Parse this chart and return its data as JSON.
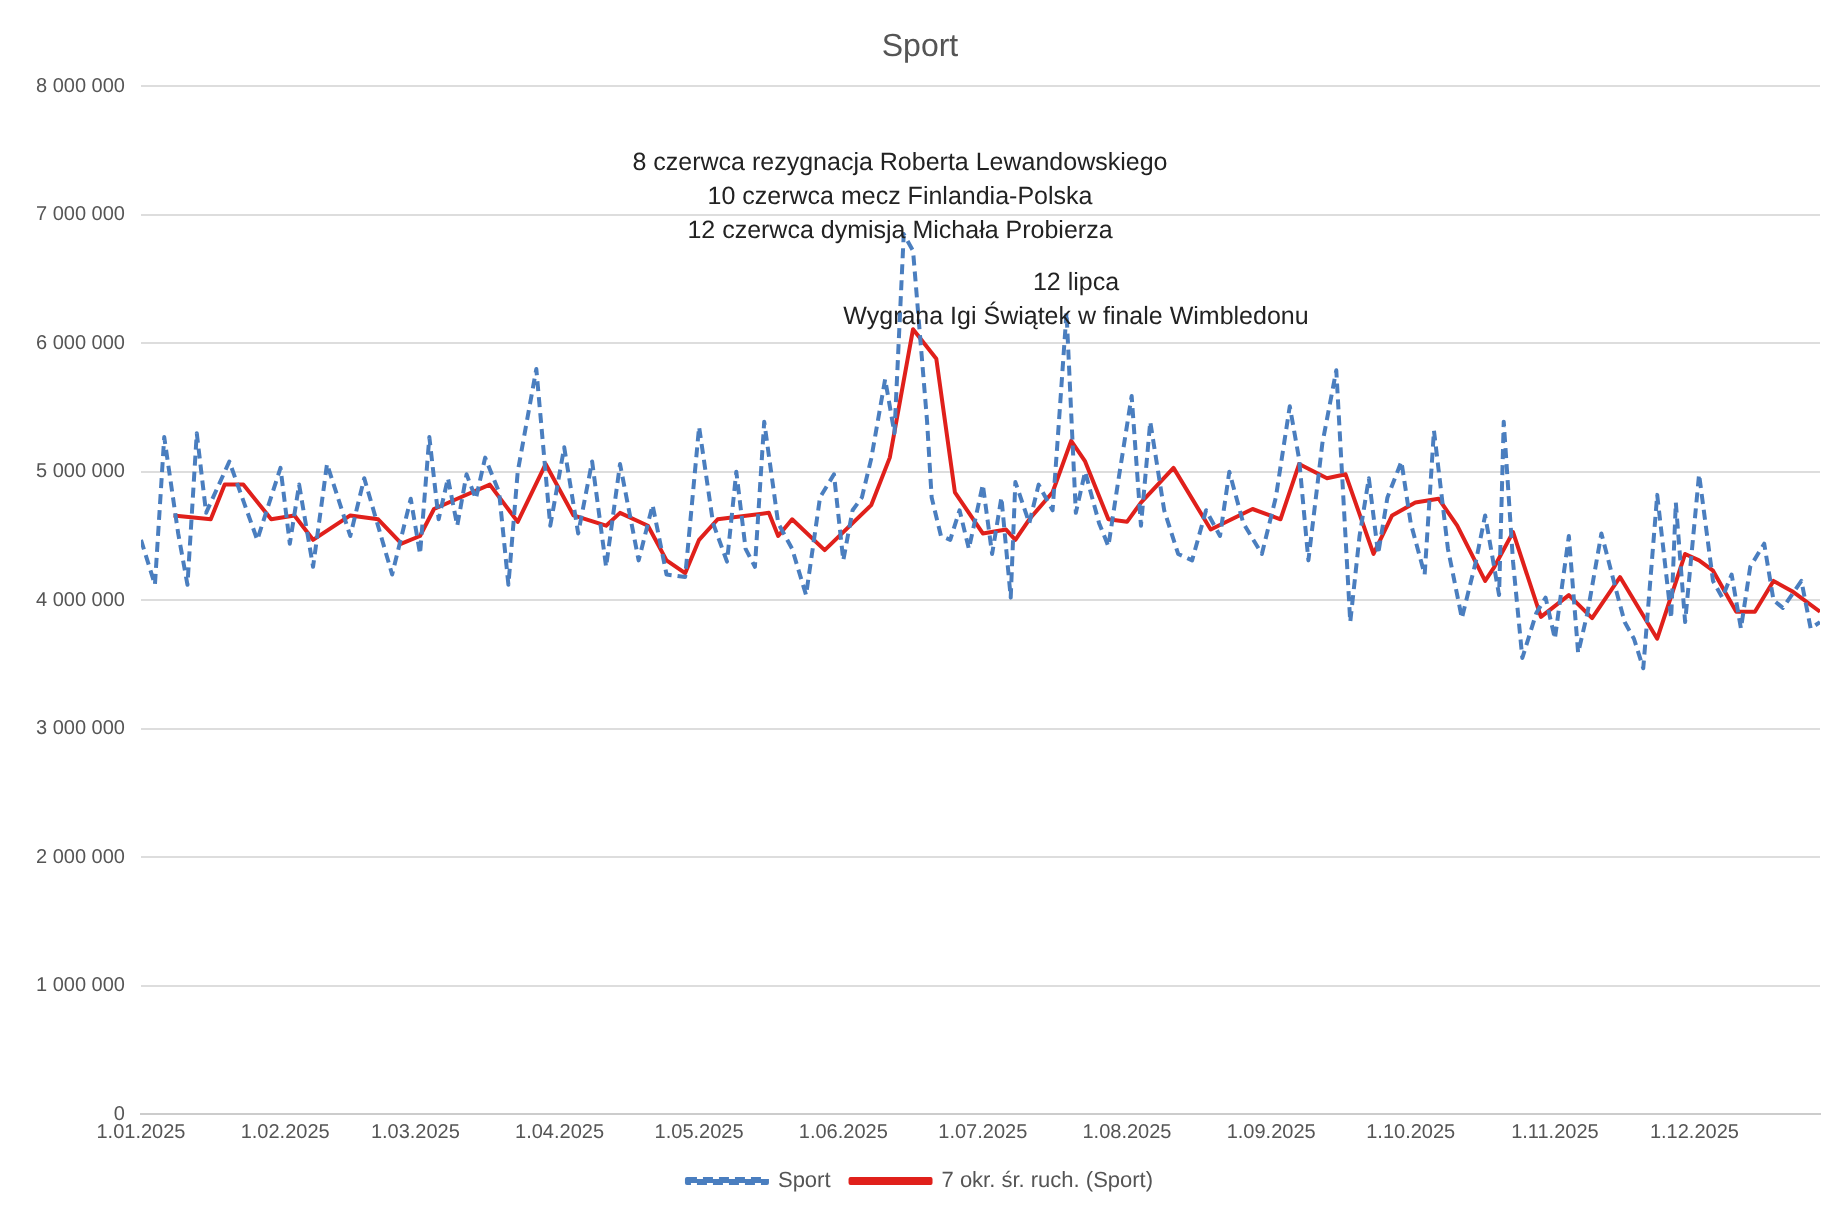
{
  "chart_data": {
    "type": "line",
    "title": "Sport",
    "xlim": [
      "2025-01-01",
      "2025-12-28"
    ],
    "xticks": [
      {
        "value": "2025-01-01",
        "label": "1.01.2025"
      },
      {
        "value": "2025-02-01",
        "label": "1.02.2025"
      },
      {
        "value": "2025-03-01",
        "label": "1.03.2025"
      },
      {
        "value": "2025-04-01",
        "label": "1.04.2025"
      },
      {
        "value": "2025-05-01",
        "label": "1.05.2025"
      },
      {
        "value": "2025-06-01",
        "label": "1.06.2025"
      },
      {
        "value": "2025-07-01",
        "label": "1.07.2025"
      },
      {
        "value": "2025-08-01",
        "label": "1.08.2025"
      },
      {
        "value": "2025-09-01",
        "label": "1.09.2025"
      },
      {
        "value": "2025-10-01",
        "label": "1.10.2025"
      },
      {
        "value": "2025-11-01",
        "label": "1.11.2025"
      },
      {
        "value": "2025-12-01",
        "label": "1.12.2025"
      }
    ],
    "ylim": [
      0,
      8000000
    ],
    "yticks": [
      0,
      {
        "value": 1000000,
        "label": "1 000 000"
      },
      {
        "value": 2000000,
        "label": "2 000 000"
      },
      {
        "value": 3000000,
        "label": "3 000 000"
      },
      {
        "value": 4000000,
        "label": "4 000 000"
      },
      {
        "value": 5000000,
        "label": "5 000 000"
      },
      {
        "value": 6000000,
        "label": "6 000 000"
      },
      {
        "value": 7000000,
        "label": "7 000 000"
      },
      {
        "value": 8000000,
        "label": "8 000 000"
      }
    ],
    "grid": "y",
    "legend": "bottom",
    "marker": "none",
    "annotations": [
      "8 czerwca rezygnacja Roberta Lewandowskiego\n10 czerwca mecz Finlandia-Polska\n12 czerwca dymisja Michała Probierza",
      "12 lipca\nWygrana Igi Świątek w finale Wimbledonu"
    ],
    "series": [
      {
        "name": "Sport",
        "type": "line",
        "color": "#4a7ebf",
        "line_style": "dashed",
        "x": [
          "2025-01-01",
          "2025-01-04",
          "2025-01-06",
          "2025-01-09",
          "2025-01-11",
          "2025-01-13",
          "2025-01-15",
          "2025-01-20",
          "2025-01-26",
          "2025-01-31",
          "2025-02-02",
          "2025-02-04",
          "2025-02-07",
          "2025-02-10",
          "2025-02-15",
          "2025-02-18",
          "2025-02-24",
          "2025-02-28",
          "2025-03-02",
          "2025-03-04",
          "2025-03-06",
          "2025-03-08",
          "2025-03-10",
          "2025-03-12",
          "2025-03-14",
          "2025-03-16",
          "2025-03-19",
          "2025-03-21",
          "2025-03-23",
          "2025-03-27",
          "2025-03-30",
          "2025-04-02",
          "2025-04-05",
          "2025-04-08",
          "2025-04-11",
          "2025-04-14",
          "2025-04-18",
          "2025-04-21",
          "2025-04-24",
          "2025-04-28",
          "2025-05-01",
          "2025-05-04",
          "2025-05-07",
          "2025-05-09",
          "2025-05-11",
          "2025-05-13",
          "2025-05-15",
          "2025-05-18",
          "2025-05-21",
          "2025-05-24",
          "2025-05-27",
          "2025-05-30",
          "2025-06-01",
          "2025-06-03",
          "2025-06-05",
          "2025-06-07",
          "2025-06-10",
          "2025-06-12",
          "2025-06-14",
          "2025-06-16",
          "2025-06-19",
          "2025-06-20",
          "2025-06-22",
          "2025-06-24",
          "2025-06-26",
          "2025-06-28",
          "2025-07-01",
          "2025-07-03",
          "2025-07-05",
          "2025-07-07",
          "2025-07-08",
          "2025-07-11",
          "2025-07-13",
          "2025-07-16",
          "2025-07-17",
          "2025-07-19",
          "2025-07-21",
          "2025-07-23",
          "2025-07-26",
          "2025-07-28",
          "2025-07-30",
          "2025-08-02",
          "2025-08-04",
          "2025-08-06",
          "2025-08-09",
          "2025-08-12",
          "2025-08-15",
          "2025-08-18",
          "2025-08-21",
          "2025-08-23",
          "2025-08-26",
          "2025-08-30",
          "2025-09-02",
          "2025-09-05",
          "2025-09-07",
          "2025-09-09",
          "2025-09-12",
          "2025-09-15",
          "2025-09-18",
          "2025-09-20",
          "2025-09-22",
          "2025-09-24",
          "2025-09-26",
          "2025-09-29",
          "2025-10-01",
          "2025-10-04",
          "2025-10-06",
          "2025-10-09",
          "2025-10-12",
          "2025-10-15",
          "2025-10-17",
          "2025-10-20",
          "2025-10-21",
          "2025-10-23",
          "2025-10-25",
          "2025-10-28",
          "2025-10-30",
          "2025-11-01",
          "2025-11-04",
          "2025-11-06",
          "2025-11-08",
          "2025-11-11",
          "2025-11-14",
          "2025-11-16",
          "2025-11-18",
          "2025-11-20",
          "2025-11-23",
          "2025-11-26",
          "2025-11-27",
          "2025-11-29",
          "2025-12-02",
          "2025-12-05",
          "2025-12-07",
          "2025-12-09",
          "2025-12-11",
          "2025-12-13",
          "2025-12-16",
          "2025-12-18",
          "2025-12-20",
          "2025-12-24",
          "2025-12-26",
          "2025-12-28"
        ],
        "values": [
          4470000,
          4120000,
          5270000,
          4520000,
          4120000,
          5300000,
          4680000,
          5080000,
          4470000,
          5030000,
          4440000,
          4900000,
          4260000,
          5060000,
          4500000,
          4950000,
          4200000,
          4790000,
          4360000,
          5270000,
          4630000,
          4950000,
          4580000,
          4980000,
          4790000,
          5110000,
          4840000,
          4120000,
          5000000,
          5800000,
          4580000,
          5190000,
          4520000,
          5080000,
          4260000,
          5060000,
          4310000,
          4740000,
          4200000,
          4180000,
          5350000,
          4600000,
          4300000,
          5000000,
          4400000,
          4260000,
          5390000,
          4600000,
          4400000,
          4040000,
          4800000,
          4980000,
          4310000,
          4700000,
          4800000,
          5100000,
          5720000,
          5300000,
          6850000,
          6720000,
          5400000,
          4800000,
          4500000,
          4470000,
          4700000,
          4400000,
          4900000,
          4360000,
          4800000,
          4020000,
          4920000,
          4600000,
          4900000,
          4700000,
          5200000,
          6240000,
          4680000,
          5000000,
          4600000,
          4420000,
          4900000,
          5590000,
          4580000,
          5390000,
          4700000,
          4360000,
          4310000,
          4700000,
          4500000,
          5000000,
          4600000,
          4360000,
          4800000,
          5510000,
          5100000,
          4310000,
          5220000,
          5790000,
          3830000,
          4500000,
          4950000,
          4360000,
          4800000,
          5080000,
          4600000,
          4200000,
          5320000,
          4400000,
          3860000,
          4300000,
          4660000,
          4040000,
          5390000,
          4300000,
          3550000,
          3900000,
          4020000,
          3700000,
          4500000,
          3590000,
          3900000,
          4520000,
          4100000,
          3830000,
          3700000,
          3470000,
          4820000,
          3860000,
          4760000,
          3830000,
          4980000,
          4150000,
          4020000,
          4200000,
          3780000,
          4260000,
          4440000,
          4000000,
          3940000,
          4150000,
          3780000,
          3830000
        ]
      },
      {
        "name": "7 okr. śr. ruch. (Sport)",
        "type": "line",
        "color": "#e0201b",
        "line_style": "solid",
        "x": [
          "2025-01-08",
          "2025-01-16",
          "2025-01-19",
          "2025-01-23",
          "2025-01-29",
          "2025-02-03",
          "2025-02-07",
          "2025-02-15",
          "2025-02-21",
          "2025-02-26",
          "2025-03-02",
          "2025-03-05",
          "2025-03-10",
          "2025-03-17",
          "2025-03-23",
          "2025-03-29",
          "2025-04-04",
          "2025-04-11",
          "2025-04-14",
          "2025-04-20",
          "2025-04-24",
          "2025-04-28",
          "2025-05-01",
          "2025-05-05",
          "2025-05-16",
          "2025-05-18",
          "2025-05-21",
          "2025-05-28",
          "2025-06-07",
          "2025-06-11",
          "2025-06-16",
          "2025-06-21",
          "2025-06-25",
          "2025-07-01",
          "2025-07-06",
          "2025-07-08",
          "2025-07-11",
          "2025-07-16",
          "2025-07-20",
          "2025-07-23",
          "2025-07-28",
          "2025-08-01",
          "2025-08-04",
          "2025-08-11",
          "2025-08-19",
          "2025-08-28",
          "2025-09-03",
          "2025-09-07",
          "2025-09-13",
          "2025-09-17",
          "2025-09-23",
          "2025-09-27",
          "2025-10-02",
          "2025-10-07",
          "2025-10-11",
          "2025-10-17",
          "2025-10-19",
          "2025-10-23",
          "2025-10-29",
          "2025-11-04",
          "2025-11-09",
          "2025-11-15",
          "2025-11-23",
          "2025-11-29",
          "2025-12-02",
          "2025-12-05",
          "2025-12-10",
          "2025-12-14",
          "2025-12-18",
          "2025-12-22",
          "2025-12-28"
        ],
        "values": [
          4660000,
          4630000,
          4900000,
          4900000,
          4630000,
          4660000,
          4470000,
          4660000,
          4630000,
          4440000,
          4500000,
          4710000,
          4790000,
          4900000,
          4610000,
          5060000,
          4660000,
          4580000,
          4680000,
          4580000,
          4310000,
          4210000,
          4470000,
          4630000,
          4680000,
          4500000,
          4630000,
          4390000,
          4740000,
          5110000,
          6110000,
          5880000,
          4840000,
          4520000,
          4550000,
          4470000,
          4630000,
          4840000,
          5240000,
          5080000,
          4630000,
          4610000,
          4760000,
          5030000,
          4550000,
          4710000,
          4630000,
          5060000,
          4950000,
          4980000,
          4360000,
          4660000,
          4760000,
          4790000,
          4580000,
          4150000,
          4260000,
          4530000,
          3870000,
          4040000,
          3860000,
          4180000,
          3700000,
          4360000,
          4310000,
          4230000,
          3910000,
          3910000,
          4150000,
          4070000,
          3910000
        ]
      }
    ]
  }
}
